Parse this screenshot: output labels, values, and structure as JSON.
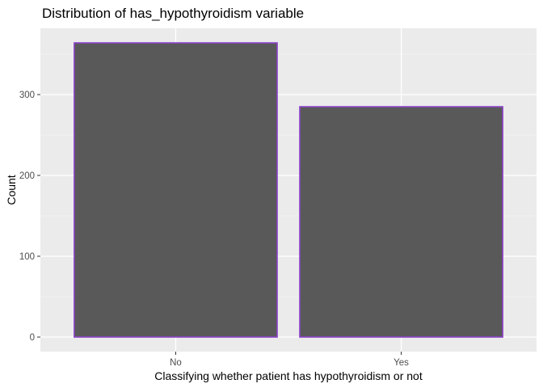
{
  "chart_data": {
    "type": "bar",
    "title": "Distribution of has_hypothyroidism variable",
    "xlabel": "Classifying whether patient has hypothyroidism or not",
    "ylabel": "Count",
    "categories": [
      "No",
      "Yes"
    ],
    "values": [
      364,
      285
    ],
    "ylim": [
      0,
      380
    ],
    "yticks": [
      0,
      100,
      200,
      300
    ],
    "ytick_labels": [
      "0",
      "100",
      "200",
      "300"
    ],
    "grid": true,
    "legend": "none",
    "colors": {
      "panel_background": "#ebebeb",
      "grid_major": "#ffffff",
      "grid_minor": "#f5f5f5",
      "bar_fill": "#595959",
      "bar_outline": "#8e44cc",
      "tick_text": "#4d4d4d",
      "tick_mark": "#333333"
    }
  }
}
